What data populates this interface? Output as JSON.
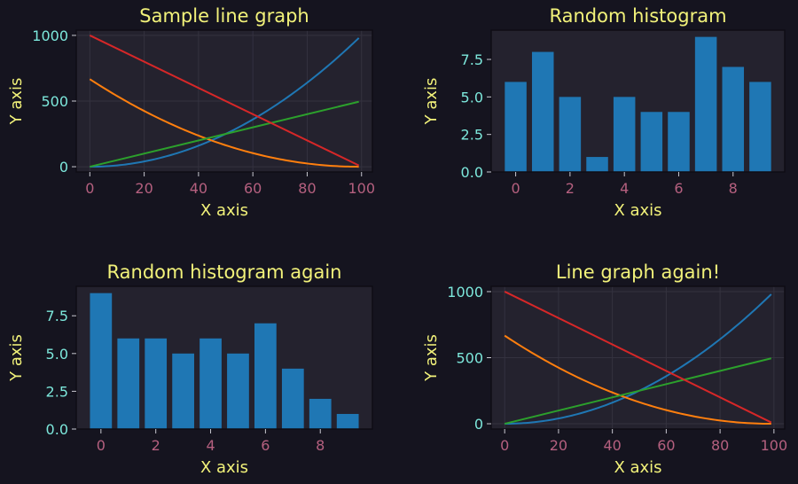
{
  "colors": {
    "background": "#15141f",
    "axes_bg": "#24222e",
    "grid": "#34323f",
    "spine": "#0e0d15",
    "title": "#f2f27a",
    "axis_label": "#f2f27a",
    "ytick": "#7de8dc",
    "xtick": "#b5607f",
    "bar": "#1f77b4",
    "series": [
      "#1f77b4",
      "#ff7f0e",
      "#2ca02c",
      "#d62728"
    ]
  },
  "chart_data": [
    {
      "type": "line",
      "title": "Sample line graph",
      "xlabel": "X axis",
      "ylabel": "Y axis",
      "xlim": [
        -5,
        104
      ],
      "ylim": [
        -40,
        1040
      ],
      "xticks": [
        0,
        20,
        40,
        60,
        80,
        100
      ],
      "yticks": [
        0,
        500,
        1000
      ],
      "grid": true,
      "series": [
        {
          "formula": "quadratic",
          "x": [
            0,
            10,
            20,
            30,
            40,
            50,
            60,
            70,
            80,
            90,
            99
          ],
          "y": [
            0,
            10,
            40,
            91,
            162,
            253,
            364,
            495,
            646,
            818,
            980
          ]
        },
        {
          "formula": "decay",
          "x": [
            0,
            10,
            20,
            30,
            40,
            50,
            60,
            70,
            80,
            90,
            99
          ],
          "y": [
            667,
            543,
            432,
            333,
            248,
            174,
            114,
            66,
            32,
            10,
            0
          ]
        },
        {
          "formula": "linear",
          "x": [
            0,
            99
          ],
          "y": [
            0,
            495
          ]
        },
        {
          "formula": "falling",
          "x": [
            0,
            99
          ],
          "y": [
            1000,
            10
          ]
        }
      ]
    },
    {
      "type": "bar",
      "title": "Random histogram",
      "xlabel": "X axis",
      "ylabel": "Y axis",
      "xlim": [
        -0.9,
        9.9
      ],
      "ylim": [
        0,
        9.45
      ],
      "xticks": [
        0,
        2,
        4,
        6,
        8
      ],
      "yticks": [
        0.0,
        2.5,
        5.0,
        7.5
      ],
      "ytick_labels": [
        "0.0",
        "2.5",
        "5.0",
        "7.5"
      ],
      "grid": false,
      "categories": [
        0,
        1,
        2,
        3,
        4,
        5,
        6,
        7,
        8,
        9
      ],
      "values": [
        6,
        8,
        5,
        1,
        5,
        4,
        4,
        9,
        7,
        6
      ]
    },
    {
      "type": "bar",
      "title": "Random histogram again",
      "xlabel": "X axis",
      "ylabel": "Y axis",
      "xlim": [
        -0.9,
        9.9
      ],
      "ylim": [
        0,
        9.45
      ],
      "xticks": [
        0,
        2,
        4,
        6,
        8
      ],
      "yticks": [
        0.0,
        2.5,
        5.0,
        7.5
      ],
      "ytick_labels": [
        "0.0",
        "2.5",
        "5.0",
        "7.5"
      ],
      "grid": false,
      "categories": [
        0,
        1,
        2,
        3,
        4,
        5,
        6,
        7,
        8,
        9
      ],
      "values": [
        9,
        6,
        6,
        5,
        6,
        5,
        7,
        4,
        2,
        1
      ]
    },
    {
      "type": "line",
      "title": "Line graph again!",
      "xlabel": "X axis",
      "ylabel": "Y axis",
      "xlim": [
        -5,
        104
      ],
      "ylim": [
        -40,
        1040
      ],
      "xticks": [
        0,
        20,
        40,
        60,
        80,
        100
      ],
      "yticks": [
        0,
        500,
        1000
      ],
      "grid": true,
      "series": [
        {
          "formula": "quadratic",
          "x": [
            0,
            10,
            20,
            30,
            40,
            50,
            60,
            70,
            80,
            90,
            99
          ],
          "y": [
            0,
            10,
            40,
            91,
            162,
            253,
            364,
            495,
            646,
            818,
            980
          ]
        },
        {
          "formula": "decay",
          "x": [
            0,
            10,
            20,
            30,
            40,
            50,
            60,
            70,
            80,
            90,
            99
          ],
          "y": [
            667,
            543,
            432,
            333,
            248,
            174,
            114,
            66,
            32,
            10,
            0
          ]
        },
        {
          "formula": "linear",
          "x": [
            0,
            99
          ],
          "y": [
            0,
            495
          ]
        },
        {
          "formula": "falling",
          "x": [
            0,
            99
          ],
          "y": [
            1000,
            10
          ]
        }
      ]
    }
  ]
}
